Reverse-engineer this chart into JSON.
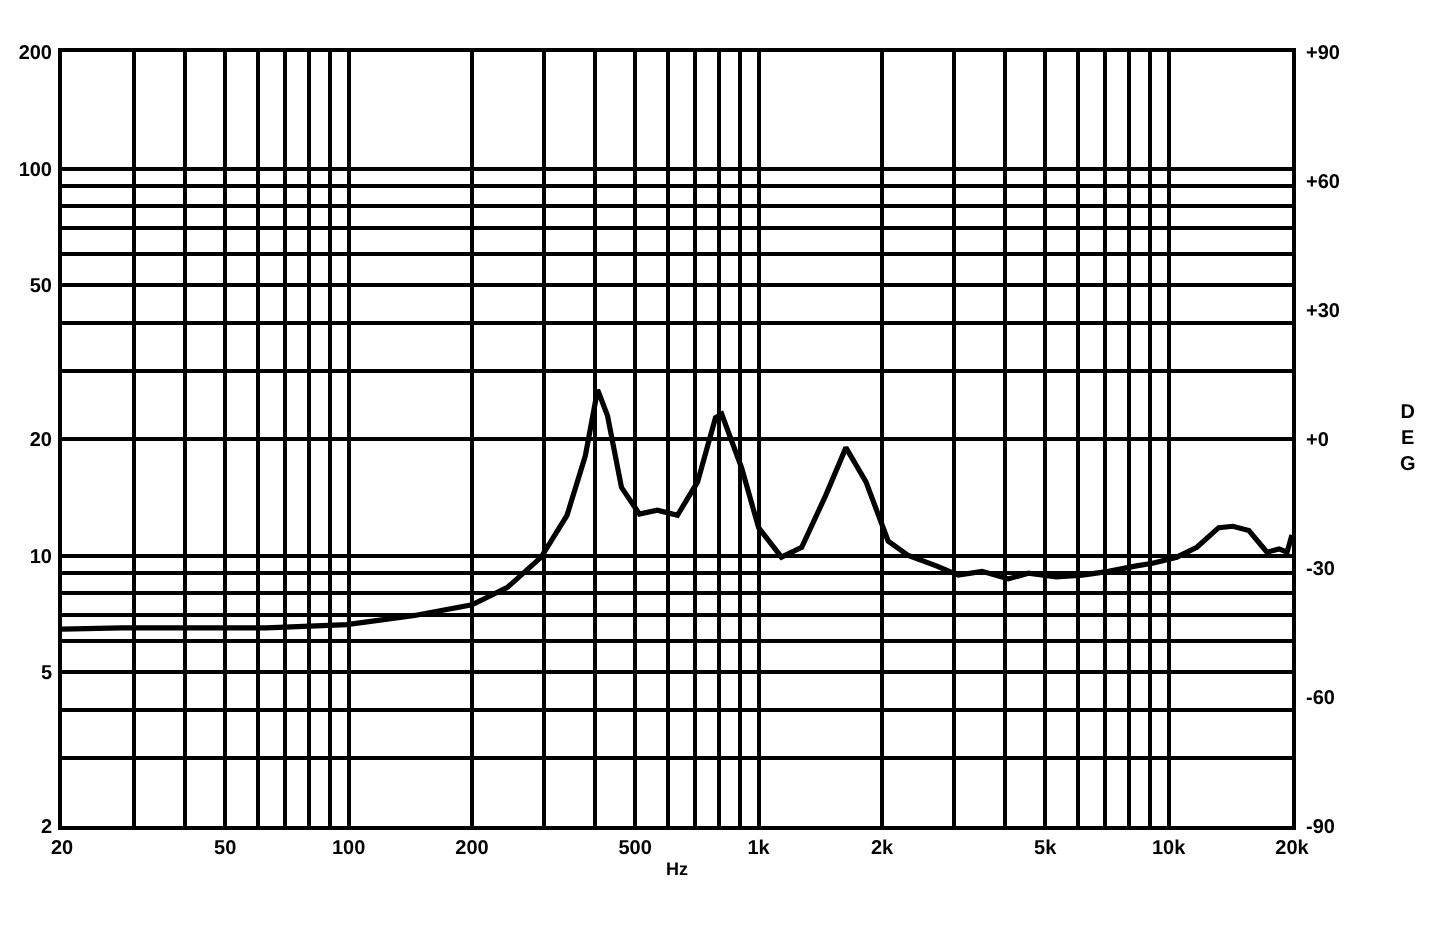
{
  "chart_data": {
    "type": "line",
    "xlabel": "Hz",
    "y2label": "DEG",
    "log": "xy",
    "grid": true,
    "marker": "none",
    "line_style": "solid",
    "xlim": [
      20,
      20000
    ],
    "xticks": [
      20,
      {
        "value": 30,
        "label": null
      },
      {
        "value": 40,
        "label": null
      },
      50,
      {
        "value": 60,
        "label": null
      },
      {
        "value": 70,
        "label": null
      },
      {
        "value": 80,
        "label": null
      },
      {
        "value": 90,
        "label": null
      },
      100,
      200,
      {
        "value": 300,
        "label": null
      },
      {
        "value": 400,
        "label": null
      },
      500,
      {
        "value": 600,
        "label": null
      },
      {
        "value": 700,
        "label": null
      },
      {
        "value": 800,
        "label": null
      },
      {
        "value": 900,
        "label": null
      },
      {
        "value": 1000,
        "label": "1k"
      },
      {
        "value": 2000,
        "label": "2k"
      },
      {
        "value": 3000,
        "label": null
      },
      {
        "value": 4000,
        "label": null
      },
      {
        "value": 5000,
        "label": "5k"
      },
      {
        "value": 6000,
        "label": null
      },
      {
        "value": 7000,
        "label": null
      },
      {
        "value": 8000,
        "label": null
      },
      {
        "value": 9000,
        "label": null
      },
      {
        "value": 10000,
        "label": "10k"
      },
      {
        "value": 20000,
        "label": "20k"
      }
    ],
    "ylim": [
      2,
      200
    ],
    "yticks": [
      2,
      {
        "value": 3,
        "label": null
      },
      {
        "value": 4,
        "label": null
      },
      5,
      {
        "value": 6,
        "label": null
      },
      {
        "value": 7,
        "label": null
      },
      {
        "value": 8,
        "label": null
      },
      {
        "value": 9,
        "label": null
      },
      10,
      20,
      {
        "value": 30,
        "label": null
      },
      {
        "value": 40,
        "label": null
      },
      50,
      {
        "value": 60,
        "label": null
      },
      {
        "value": 70,
        "label": null
      },
      {
        "value": 80,
        "label": null
      },
      {
        "value": 90,
        "label": null
      },
      100,
      200
    ],
    "y2lim": [
      -90,
      90
    ],
    "y2ticks": [
      {
        "value": -90,
        "label": "-90"
      },
      {
        "value": -60,
        "label": "-60"
      },
      {
        "value": -30,
        "label": "-30"
      },
      {
        "value": 0,
        "label": "+0"
      },
      {
        "value": 30,
        "label": "+30"
      },
      {
        "value": 60,
        "label": "+60"
      },
      {
        "value": 90,
        "label": "+90"
      }
    ],
    "series": [
      {
        "color": "#000000",
        "x": [
          20,
          28,
          63,
          99,
          145,
          200,
          244,
          295,
          341,
          378,
          405,
          428,
          463,
          512,
          566,
          634,
          710,
          785,
          813,
          910,
          1000,
          1137,
          1274,
          1458,
          1633,
          1828,
          2070,
          2318,
          2713,
          3070,
          3510,
          4063,
          4550,
          5321,
          6166,
          7130,
          8350,
          9140,
          10470,
          11720,
          13250,
          14350,
          15700,
          17380,
          18600,
          19450,
          20000
        ],
        "values": [
          6.45,
          6.5,
          6.5,
          6.63,
          7.0,
          7.46,
          8.27,
          9.9,
          12.7,
          18.1,
          26.8,
          23,
          15,
          12.8,
          13.1,
          12.7,
          15.5,
          22.7,
          23.2,
          16.8,
          11.8,
          9.9,
          10.5,
          14.3,
          19.0,
          15.5,
          10.9,
          10.0,
          9.4,
          8.9,
          9.1,
          8.7,
          9.0,
          8.8,
          8.9,
          9.1,
          9.4,
          9.55,
          9.9,
          10.5,
          11.8,
          11.9,
          11.6,
          10.2,
          10.4,
          10.2,
          11.3
        ]
      }
    ]
  }
}
